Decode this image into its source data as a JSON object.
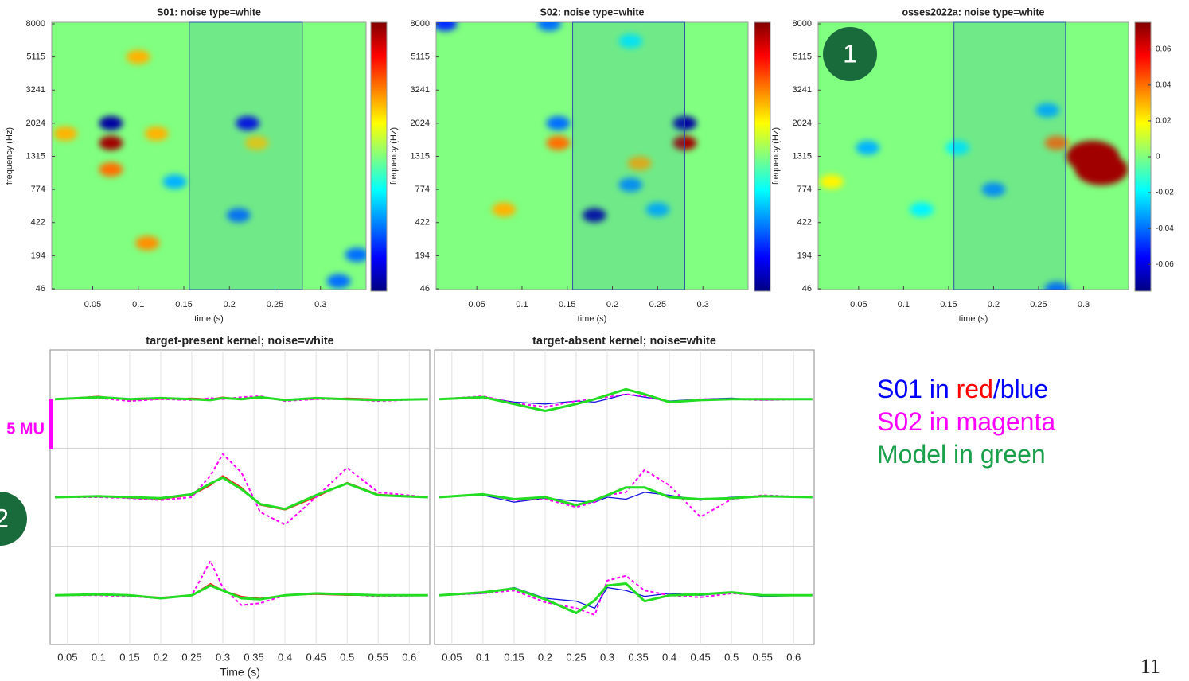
{
  "chart_data": [
    {
      "type": "heatmap",
      "title": "S01: noise type=white",
      "xlabel": "time (s)",
      "ylabel": "frequency (Hz)",
      "colormap": "jet",
      "clim": [
        -0.075,
        0.075
      ],
      "xlim": [
        0.005,
        0.35
      ],
      "xticks": [
        0.05,
        0.1,
        0.15,
        0.2,
        0.25,
        0.3
      ],
      "yticks": [
        46,
        194,
        422,
        774,
        1315,
        2024,
        3241,
        5115,
        8000
      ],
      "highlight": [
        0.156,
        0.28
      ],
      "cells": [
        {
          "t": 0.07,
          "f": 2024,
          "v": -0.07
        },
        {
          "t": 0.07,
          "f": 1600,
          "v": 0.07
        },
        {
          "t": 0.07,
          "f": 1100,
          "v": 0.04
        },
        {
          "t": 0.02,
          "f": 1800,
          "v": 0.03
        },
        {
          "t": 0.12,
          "f": 1800,
          "v": 0.03
        },
        {
          "t": 0.1,
          "f": 5115,
          "v": 0.03
        },
        {
          "t": 0.22,
          "f": 2024,
          "v": -0.06
        },
        {
          "t": 0.23,
          "f": 1600,
          "v": 0.025
        },
        {
          "t": 0.21,
          "f": 500,
          "v": -0.04
        },
        {
          "t": 0.11,
          "f": 280,
          "v": 0.035
        },
        {
          "t": 0.32,
          "f": 80,
          "v": -0.04
        },
        {
          "t": 0.34,
          "f": 200,
          "v": -0.04
        },
        {
          "t": 0.14,
          "f": 900,
          "v": -0.03
        }
      ]
    },
    {
      "type": "heatmap",
      "title": "S02: noise type=white",
      "xlabel": "time (s)",
      "ylabel": "frequency (Hz)",
      "colormap": "jet",
      "clim": [
        -0.075,
        0.075
      ],
      "xlim": [
        0.005,
        0.35
      ],
      "xticks": [
        0.05,
        0.1,
        0.15,
        0.2,
        0.25,
        0.3
      ],
      "yticks": [
        46,
        194,
        422,
        774,
        1315,
        2024,
        3241,
        5115,
        8000
      ],
      "highlight": [
        0.156,
        0.28
      ],
      "cells": [
        {
          "t": 0.015,
          "f": 8000,
          "v": -0.05
        },
        {
          "t": 0.13,
          "f": 8000,
          "v": -0.04
        },
        {
          "t": 0.14,
          "f": 2024,
          "v": -0.04
        },
        {
          "t": 0.14,
          "f": 1600,
          "v": 0.04
        },
        {
          "t": 0.28,
          "f": 2024,
          "v": -0.07
        },
        {
          "t": 0.28,
          "f": 1600,
          "v": 0.07
        },
        {
          "t": 0.18,
          "f": 500,
          "v": -0.07
        },
        {
          "t": 0.25,
          "f": 560,
          "v": -0.03
        },
        {
          "t": 0.23,
          "f": 1200,
          "v": 0.03
        },
        {
          "t": 0.22,
          "f": 850,
          "v": -0.035
        },
        {
          "t": 0.08,
          "f": 560,
          "v": 0.03
        },
        {
          "t": 0.22,
          "f": 6500,
          "v": -0.02
        }
      ]
    },
    {
      "type": "heatmap",
      "title": "osses2022a: noise type=white",
      "xlabel": "time (s)",
      "ylabel": "frequency (Hz)",
      "colormap": "jet",
      "clim": [
        -0.075,
        0.075
      ],
      "cticks": [
        -0.06,
        -0.04,
        -0.02,
        0,
        0.02,
        0.04,
        0.06
      ],
      "xlim": [
        0.005,
        0.35
      ],
      "xticks": [
        0.05,
        0.1,
        0.15,
        0.2,
        0.25,
        0.3
      ],
      "yticks": [
        46,
        194,
        422,
        774,
        1315,
        2024,
        3241,
        5115,
        8000
      ],
      "highlight": [
        0.156,
        0.28
      ],
      "cells": [
        {
          "t": 0.31,
          "f": 1315,
          "v": 0.07
        },
        {
          "t": 0.32,
          "f": 1100,
          "v": 0.07
        },
        {
          "t": 0.27,
          "f": 1600,
          "v": 0.04
        },
        {
          "t": 0.26,
          "f": 2500,
          "v": -0.03
        },
        {
          "t": 0.2,
          "f": 774,
          "v": -0.035
        },
        {
          "t": 0.06,
          "f": 1500,
          "v": -0.03
        },
        {
          "t": 0.16,
          "f": 1500,
          "v": -0.02
        },
        {
          "t": 0.27,
          "f": 46,
          "v": -0.04
        },
        {
          "t": 0.12,
          "f": 560,
          "v": -0.02
        },
        {
          "t": 0.02,
          "f": 900,
          "v": 0.02
        }
      ]
    },
    {
      "type": "line",
      "title": "target-present kernel; noise=white",
      "xlabel": "Time (s)",
      "grid": true,
      "xlim": [
        0.022,
        0.633
      ],
      "xticks": [
        0.05,
        0.1,
        0.15,
        0.2,
        0.25,
        0.3,
        0.35,
        0.4,
        0.45,
        0.5,
        0.55,
        0.6
      ],
      "ylim": [
        0,
        3
      ],
      "yticks": [
        1,
        2
      ],
      "x": [
        0.03,
        0.1,
        0.15,
        0.2,
        0.25,
        0.28,
        0.3,
        0.33,
        0.36,
        0.4,
        0.45,
        0.5,
        0.55,
        0.63
      ],
      "series": [
        {
          "color": "#e8201c",
          "style": "solid",
          "linewidth": 1.3,
          "values": [
            2.5,
            2.53,
            2.49,
            2.5,
            2.51,
            2.5,
            2.52,
            2.5,
            2.51,
            2.49,
            2.5,
            2.51,
            2.5,
            2.5
          ]
        },
        {
          "color": "#ff00ff",
          "style": "dashed",
          "linewidth": 2,
          "values": [
            2.5,
            2.51,
            2.48,
            2.5,
            2.49,
            2.51,
            2.5,
            2.52,
            2.53,
            2.48,
            2.5,
            2.5,
            2.48,
            2.5
          ]
        },
        {
          "color": "#22dd22",
          "style": "solid",
          "linewidth": 3,
          "values": [
            2.5,
            2.52,
            2.5,
            2.51,
            2.5,
            2.49,
            2.51,
            2.5,
            2.52,
            2.49,
            2.51,
            2.5,
            2.49,
            2.5
          ]
        },
        {
          "color": "#e8201c",
          "style": "solid",
          "linewidth": 1.3,
          "values": [
            1.5,
            1.51,
            1.49,
            1.48,
            1.52,
            1.62,
            1.72,
            1.6,
            1.42,
            1.37,
            1.5,
            1.65,
            1.53,
            1.5
          ]
        },
        {
          "color": "#ff00ff",
          "style": "dashed",
          "linewidth": 2,
          "values": [
            1.5,
            1.5,
            1.49,
            1.47,
            1.5,
            1.72,
            1.94,
            1.75,
            1.35,
            1.22,
            1.5,
            1.8,
            1.55,
            1.5
          ]
        },
        {
          "color": "#22dd22",
          "style": "solid",
          "linewidth": 3,
          "values": [
            1.5,
            1.51,
            1.5,
            1.49,
            1.53,
            1.64,
            1.7,
            1.58,
            1.43,
            1.38,
            1.52,
            1.64,
            1.52,
            1.5
          ]
        },
        {
          "color": "#e8201c",
          "style": "solid",
          "linewidth": 1.3,
          "values": [
            0.5,
            0.51,
            0.5,
            0.48,
            0.5,
            0.62,
            0.55,
            0.49,
            0.47,
            0.5,
            0.51,
            0.5,
            0.5,
            0.5
          ]
        },
        {
          "color": "#ff00ff",
          "style": "dashed",
          "linewidth": 2,
          "values": [
            0.5,
            0.5,
            0.49,
            0.47,
            0.5,
            0.85,
            0.58,
            0.4,
            0.42,
            0.5,
            0.52,
            0.51,
            0.49,
            0.5
          ]
        },
        {
          "color": "#22dd22",
          "style": "solid",
          "linewidth": 3,
          "values": [
            0.5,
            0.51,
            0.5,
            0.47,
            0.5,
            0.6,
            0.55,
            0.47,
            0.46,
            0.5,
            0.52,
            0.51,
            0.5,
            0.5
          ]
        }
      ]
    },
    {
      "type": "line",
      "title": "target-absent kernel; noise=white",
      "grid": true,
      "xlim": [
        0.022,
        0.633
      ],
      "xticks": [
        0.05,
        0.1,
        0.15,
        0.2,
        0.25,
        0.3,
        0.35,
        0.4,
        0.45,
        0.5,
        0.55,
        0.6
      ],
      "ylim": [
        0,
        3
      ],
      "yticks": [
        1,
        2
      ],
      "x": [
        0.03,
        0.1,
        0.15,
        0.2,
        0.25,
        0.28,
        0.3,
        0.33,
        0.36,
        0.4,
        0.45,
        0.5,
        0.55,
        0.63
      ],
      "series": [
        {
          "color": "#1010e0",
          "style": "solid",
          "linewidth": 1.3,
          "values": [
            2.5,
            2.52,
            2.47,
            2.45,
            2.48,
            2.47,
            2.5,
            2.55,
            2.52,
            2.48,
            2.5,
            2.51,
            2.49,
            2.5
          ]
        },
        {
          "color": "#ff00ff",
          "style": "dashed",
          "linewidth": 2,
          "values": [
            2.5,
            2.53,
            2.46,
            2.42,
            2.48,
            2.5,
            2.52,
            2.55,
            2.53,
            2.47,
            2.5,
            2.5,
            2.49,
            2.5
          ]
        },
        {
          "color": "#22dd22",
          "style": "solid",
          "linewidth": 3,
          "values": [
            2.5,
            2.52,
            2.45,
            2.38,
            2.45,
            2.5,
            2.54,
            2.6,
            2.55,
            2.47,
            2.49,
            2.5,
            2.5,
            2.5
          ]
        },
        {
          "color": "#1010e0",
          "style": "solid",
          "linewidth": 1.3,
          "values": [
            1.5,
            1.52,
            1.45,
            1.49,
            1.46,
            1.45,
            1.5,
            1.48,
            1.55,
            1.52,
            1.47,
            1.5,
            1.51,
            1.5
          ]
        },
        {
          "color": "#ff00ff",
          "style": "dashed",
          "linewidth": 2,
          "values": [
            1.5,
            1.53,
            1.47,
            1.48,
            1.4,
            1.45,
            1.52,
            1.55,
            1.78,
            1.62,
            1.3,
            1.48,
            1.52,
            1.5
          ]
        },
        {
          "color": "#22dd22",
          "style": "solid",
          "linewidth": 3,
          "values": [
            1.5,
            1.53,
            1.48,
            1.5,
            1.42,
            1.47,
            1.52,
            1.6,
            1.6,
            1.5,
            1.48,
            1.49,
            1.51,
            1.5
          ]
        },
        {
          "color": "#1010e0",
          "style": "solid",
          "linewidth": 1.3,
          "values": [
            0.5,
            0.52,
            0.58,
            0.47,
            0.44,
            0.37,
            0.58,
            0.55,
            0.49,
            0.52,
            0.5,
            0.53,
            0.49,
            0.5
          ]
        },
        {
          "color": "#ff00ff",
          "style": "dashed",
          "linewidth": 2,
          "values": [
            0.5,
            0.52,
            0.55,
            0.43,
            0.37,
            0.3,
            0.65,
            0.7,
            0.55,
            0.5,
            0.48,
            0.52,
            0.5,
            0.5
          ]
        },
        {
          "color": "#22dd22",
          "style": "solid",
          "linewidth": 3,
          "values": [
            0.5,
            0.53,
            0.57,
            0.46,
            0.32,
            0.45,
            0.6,
            0.62,
            0.44,
            0.5,
            0.51,
            0.53,
            0.5,
            0.5
          ]
        }
      ]
    }
  ],
  "slide": {
    "legend_lines": [
      [
        {
          "text": "S01 in ",
          "color": "#0000ff"
        },
        {
          "text": "red",
          "color": "#ff0000"
        },
        {
          "text": "/blue",
          "color": "#0000ff"
        }
      ],
      [
        {
          "text": "S02 in magenta",
          "color": "#ff00ff"
        }
      ],
      [
        {
          "text": "Model in green",
          "color": "#1aa04a"
        }
      ]
    ],
    "badges": [
      "1",
      "2"
    ],
    "scale_bar": "5 MU",
    "page_number": "11"
  }
}
